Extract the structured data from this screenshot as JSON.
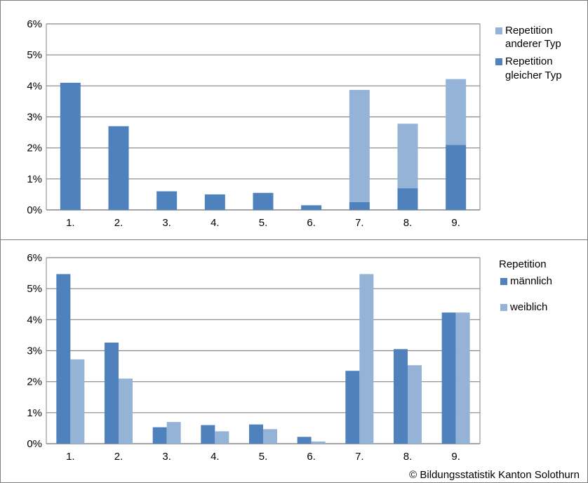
{
  "colors": {
    "dark_blue": "#4f81bd",
    "light_blue": "#95b3d7",
    "grid": "#868686",
    "frame": "#7f7f7f"
  },
  "chart_data": [
    {
      "type": "bar",
      "stacked": true,
      "categories": [
        "1.",
        "2.",
        "3.",
        "4.",
        "5.",
        "6.",
        "7.",
        "8.",
        "9."
      ],
      "y_ticks": [
        "0%",
        "1%",
        "2%",
        "3%",
        "4%",
        "5%",
        "6%"
      ],
      "ylim": [
        0,
        6
      ],
      "grid": true,
      "legend_position": "right",
      "series": [
        {
          "name": "Repetition gleicher Typ",
          "legend_lines": [
            "Repetition",
            "gleicher Typ"
          ],
          "color": "#4f81bd",
          "values": [
            4.1,
            2.7,
            0.6,
            0.5,
            0.55,
            0.15,
            0.25,
            0.7,
            2.1
          ]
        },
        {
          "name": "Repetition anderer Typ",
          "legend_lines": [
            "Repetition",
            "anderer Typ"
          ],
          "color": "#95b3d7",
          "values": [
            0,
            0,
            0,
            0,
            0,
            0,
            3.62,
            2.08,
            2.12
          ]
        }
      ]
    },
    {
      "type": "bar",
      "stacked": false,
      "categories": [
        "1.",
        "2.",
        "3.",
        "4.",
        "5.",
        "6.",
        "7.",
        "8.",
        "9."
      ],
      "y_ticks": [
        "0%",
        "1%",
        "2%",
        "3%",
        "4%",
        "5%",
        "6%"
      ],
      "ylim": [
        0,
        6
      ],
      "grid": true,
      "legend_position": "right",
      "legend_title": "Repetition",
      "series": [
        {
          "name": "männlich",
          "color": "#4f81bd",
          "values": [
            5.47,
            3.26,
            0.53,
            0.6,
            0.62,
            0.22,
            2.35,
            3.05,
            4.23
          ]
        },
        {
          "name": "weiblich",
          "color": "#95b3d7",
          "values": [
            2.72,
            2.1,
            0.7,
            0.4,
            0.47,
            0.07,
            5.47,
            2.53,
            4.23
          ]
        }
      ]
    }
  ],
  "credit": "© Bildungsstatistik Kanton Solothurn"
}
